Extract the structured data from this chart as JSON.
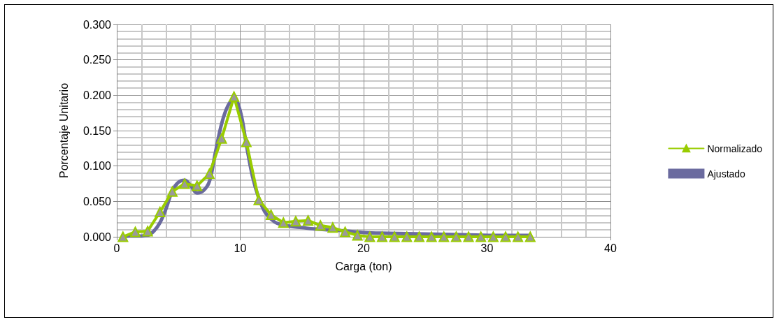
{
  "chart_data": {
    "type": "line",
    "xlabel": "Carga (ton)",
    "ylabel": "Porcentaje Unitario",
    "xlim": [
      0,
      40
    ],
    "xticks": [
      0,
      10,
      20,
      30,
      40
    ],
    "ylim": [
      0,
      0.3
    ],
    "yticks": [
      {
        "value": 0,
        "label": "0.000"
      },
      {
        "value": 0.05,
        "label": "0.050"
      },
      {
        "value": 0.1,
        "label": "0.100"
      },
      {
        "value": 0.15,
        "label": "0.150"
      },
      {
        "value": 0.2,
        "label": "0.200"
      },
      {
        "value": 0.25,
        "label": "0.250"
      },
      {
        "value": 0.3,
        "label": "0.300"
      }
    ],
    "grid": true,
    "legend": "right",
    "series": [
      {
        "name": "Normalizado",
        "color": "#99cc00",
        "marker": "triangle",
        "x": [
          0.5,
          1.5,
          2.5,
          3.5,
          4.5,
          5.5,
          6.5,
          7.5,
          8.5,
          9.5,
          10.5,
          11.5,
          12.5,
          13.5,
          14.5,
          15.5,
          16.5,
          17.5,
          18.5,
          19.5,
          20.5,
          21.5,
          22.5,
          23.5,
          24.5,
          25.5,
          26.5,
          27.5,
          28.5,
          29.5,
          30.5,
          31.5,
          32.5,
          33.5
        ],
        "values": [
          0.0,
          0.007,
          0.008,
          0.035,
          0.064,
          0.075,
          0.072,
          0.089,
          0.139,
          0.198,
          0.134,
          0.052,
          0.031,
          0.02,
          0.022,
          0.023,
          0.016,
          0.013,
          0.007,
          0.002,
          0.0,
          0.0,
          0.0,
          0.0,
          0.0,
          0.0,
          0.0,
          0.0,
          0.0,
          0.0,
          0.0,
          0.0,
          0.0,
          0.0
        ]
      },
      {
        "name": "Ajustado",
        "color": "#6b6b9f",
        "marker": "none",
        "x": [
          0.5,
          1,
          2,
          2.5,
          3,
          3.5,
          4,
          4.5,
          5,
          5.5,
          6,
          6.5,
          7,
          7.5,
          8,
          8.5,
          9,
          9.5,
          10,
          10.5,
          11,
          11.5,
          12,
          12.5,
          13,
          14,
          15,
          16,
          18,
          20,
          22,
          25,
          28,
          31,
          33.5
        ],
        "values": [
          0.0,
          0.001,
          0.001,
          0.002,
          0.008,
          0.02,
          0.04,
          0.065,
          0.077,
          0.08,
          0.072,
          0.062,
          0.065,
          0.078,
          0.12,
          0.16,
          0.185,
          0.195,
          0.178,
          0.13,
          0.085,
          0.055,
          0.035,
          0.025,
          0.019,
          0.015,
          0.013,
          0.011,
          0.009,
          0.006,
          0.005,
          0.004,
          0.003,
          0.002,
          0.002
        ]
      }
    ]
  }
}
